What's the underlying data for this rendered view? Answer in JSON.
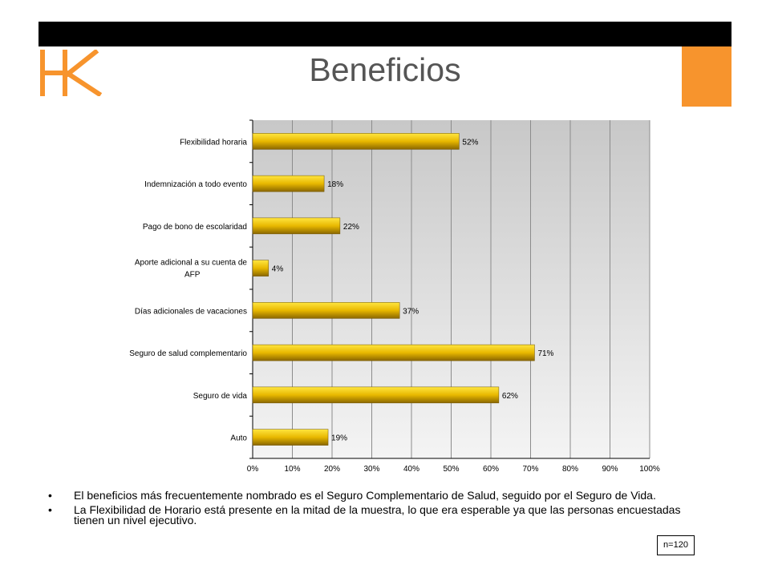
{
  "header": {
    "logo_text": "HK",
    "title": "Beneficios",
    "brand_color": "#F7942D"
  },
  "chart_data": {
    "type": "bar",
    "orientation": "horizontal",
    "categories": [
      "Flexibilidad horaria",
      "Indemnización a todo evento",
      "Pago de bono de escolaridad",
      "Aporte adicional a su cuenta de AFP",
      "Días adicionales de vacaciones",
      "Seguro de salud complementario",
      "Seguro de vida",
      "Auto"
    ],
    "values": [
      52,
      18,
      22,
      4,
      37,
      71,
      62,
      19
    ],
    "value_labels": [
      "52%",
      "18%",
      "22%",
      "4%",
      "37%",
      "71%",
      "62%",
      "19%"
    ],
    "x_ticks": [
      "0%",
      "10%",
      "20%",
      "30%",
      "40%",
      "50%",
      "60%",
      "70%",
      "80%",
      "90%",
      "100%"
    ],
    "xlim": [
      0,
      100
    ],
    "grid": true,
    "bar_color": "#E8B800",
    "title": "",
    "xlabel": "",
    "ylabel": ""
  },
  "notes": {
    "bullets": [
      "El beneficios más frecuentemente nombrado es el Seguro Complementario de Salud, seguido por el Seguro de Vida.",
      "La Flexibilidad de Horario está presente en la mitad de la muestra, lo que era esperable ya que las personas encuestadas tienen  un nivel ejecutivo."
    ],
    "sample_size": "n=120"
  }
}
